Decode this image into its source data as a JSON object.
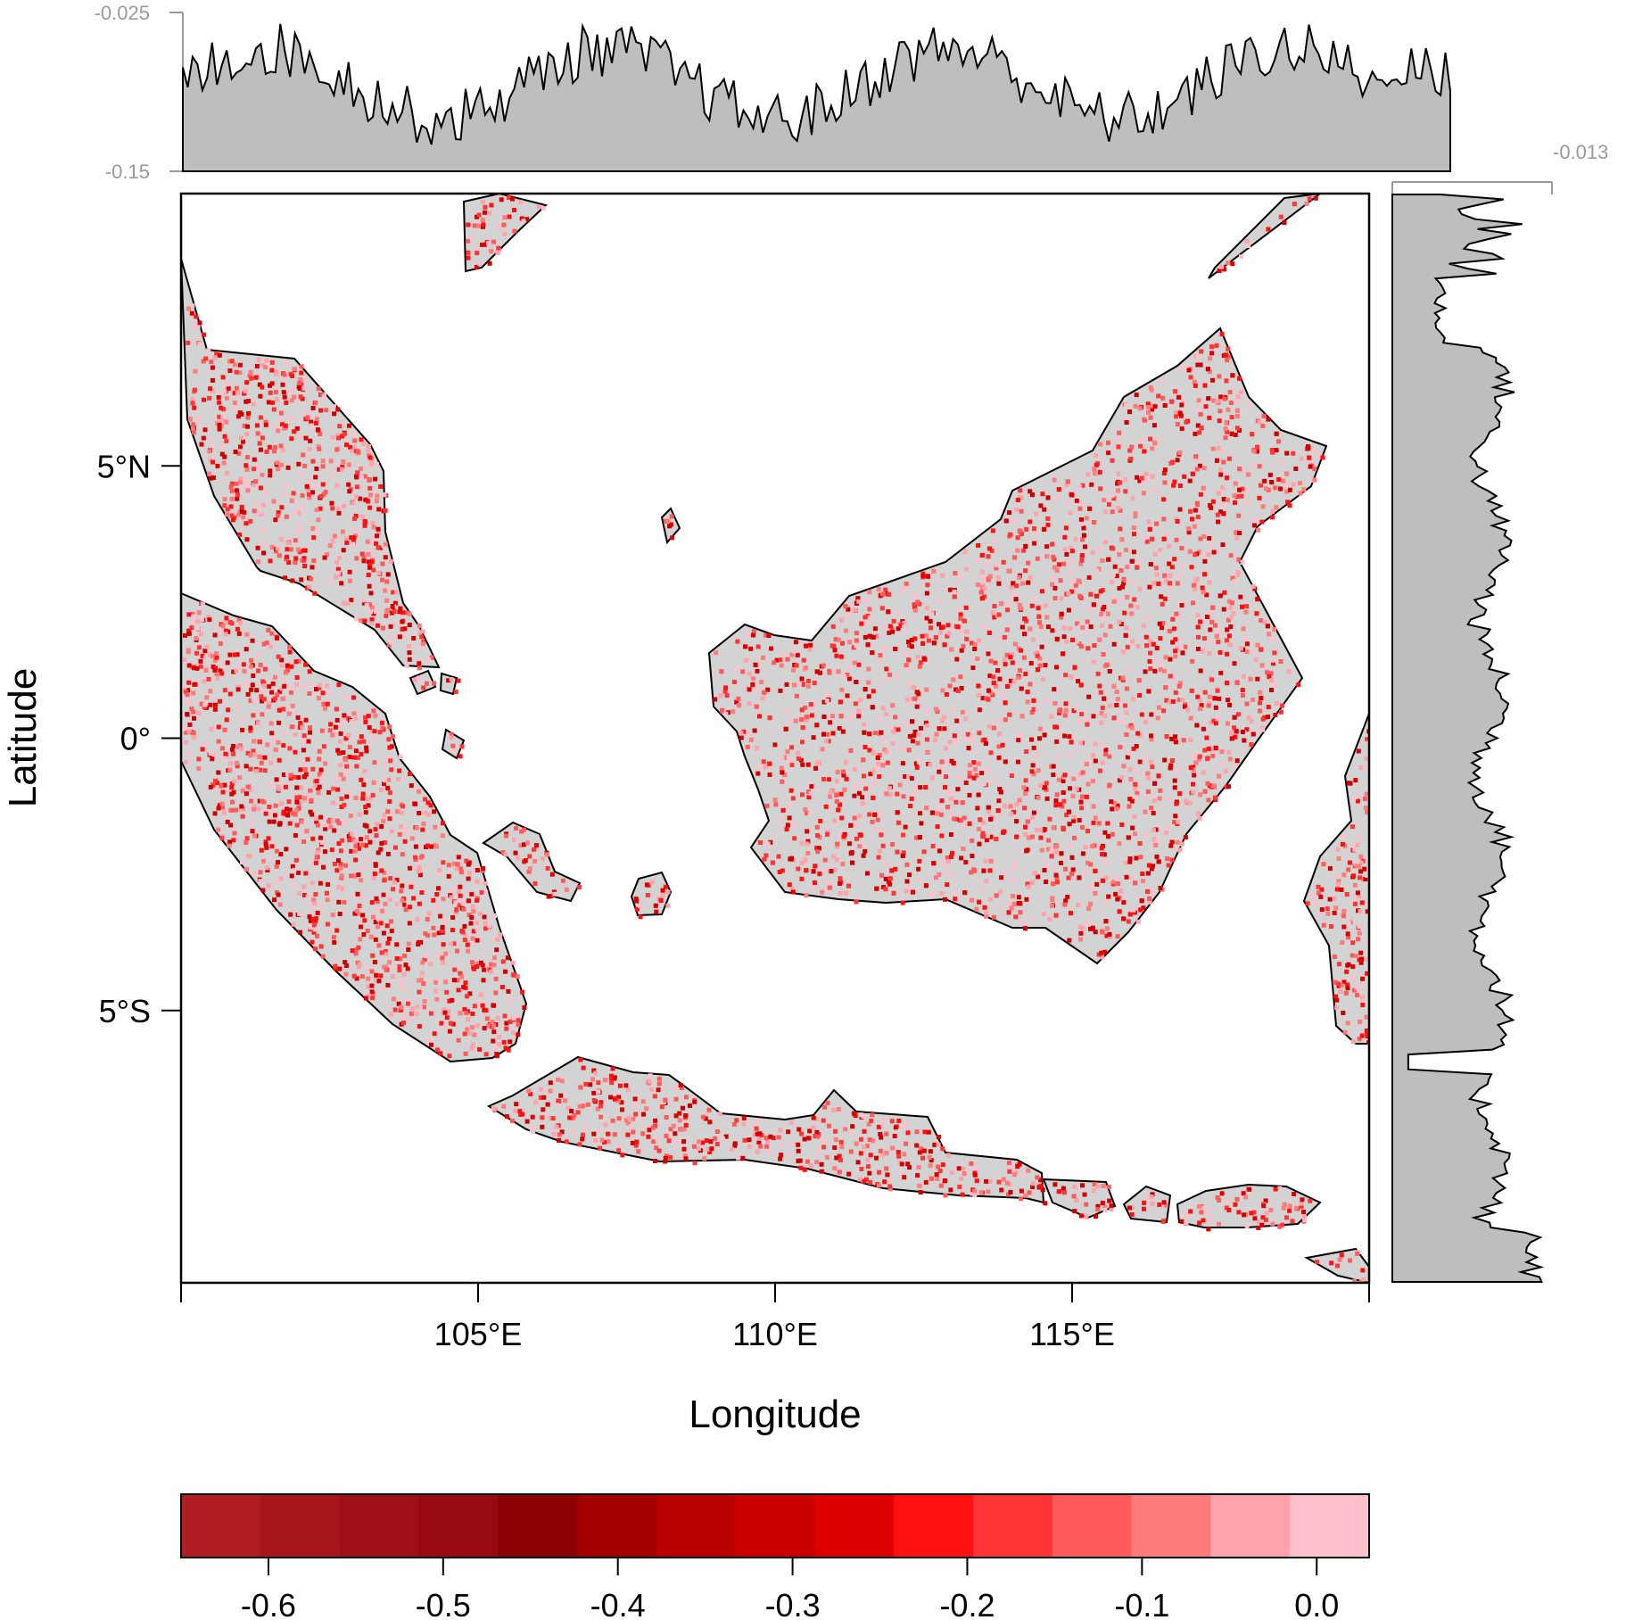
{
  "map": {
    "x_axis": {
      "title": "Longitude",
      "ticks": [
        {
          "value": 105,
          "label": "105°E"
        },
        {
          "value": 110,
          "label": "110°E"
        },
        {
          "value": 115,
          "label": "115°E"
        }
      ],
      "range": [
        100,
        120
      ]
    },
    "y_axis": {
      "title": "Latitude",
      "ticks": [
        {
          "value": 5,
          "label": "5°N"
        },
        {
          "value": 0,
          "label": "0°"
        },
        {
          "value": -5,
          "label": "5°S"
        }
      ],
      "range": [
        -10,
        10
      ]
    },
    "land_color": "#d3d3d3",
    "coast_color": "#000000"
  },
  "top_margin_plot": {
    "labels": [
      "-0.025",
      "-0.15"
    ],
    "range": [
      -0.15,
      -0.025
    ],
    "fill": "#bebebe"
  },
  "right_margin_plot": {
    "labels": [
      "-0.013"
    ],
    "fill": "#bebebe"
  },
  "colorbar": {
    "colors": [
      "#b01c22",
      "#a7161b",
      "#9e1016",
      "#970b10",
      "#8b0000",
      "#a50000",
      "#bb0000",
      "#cc0000",
      "#de0000",
      "#ff1010",
      "#ff3535",
      "#ff5a5a",
      "#ff7a7a",
      "#ffa2aa",
      "#ffc0cb"
    ],
    "range": [
      -0.65,
      0.03
    ],
    "ticks": [
      {
        "value": -0.6,
        "label": "-0.6"
      },
      {
        "value": -0.5,
        "label": "-0.5"
      },
      {
        "value": -0.4,
        "label": "-0.4"
      },
      {
        "value": -0.3,
        "label": "-0.3"
      },
      {
        "value": -0.2,
        "label": "-0.2"
      },
      {
        "value": -0.1,
        "label": "-0.1"
      },
      {
        "value": 0.0,
        "label": "0.0"
      }
    ]
  }
}
